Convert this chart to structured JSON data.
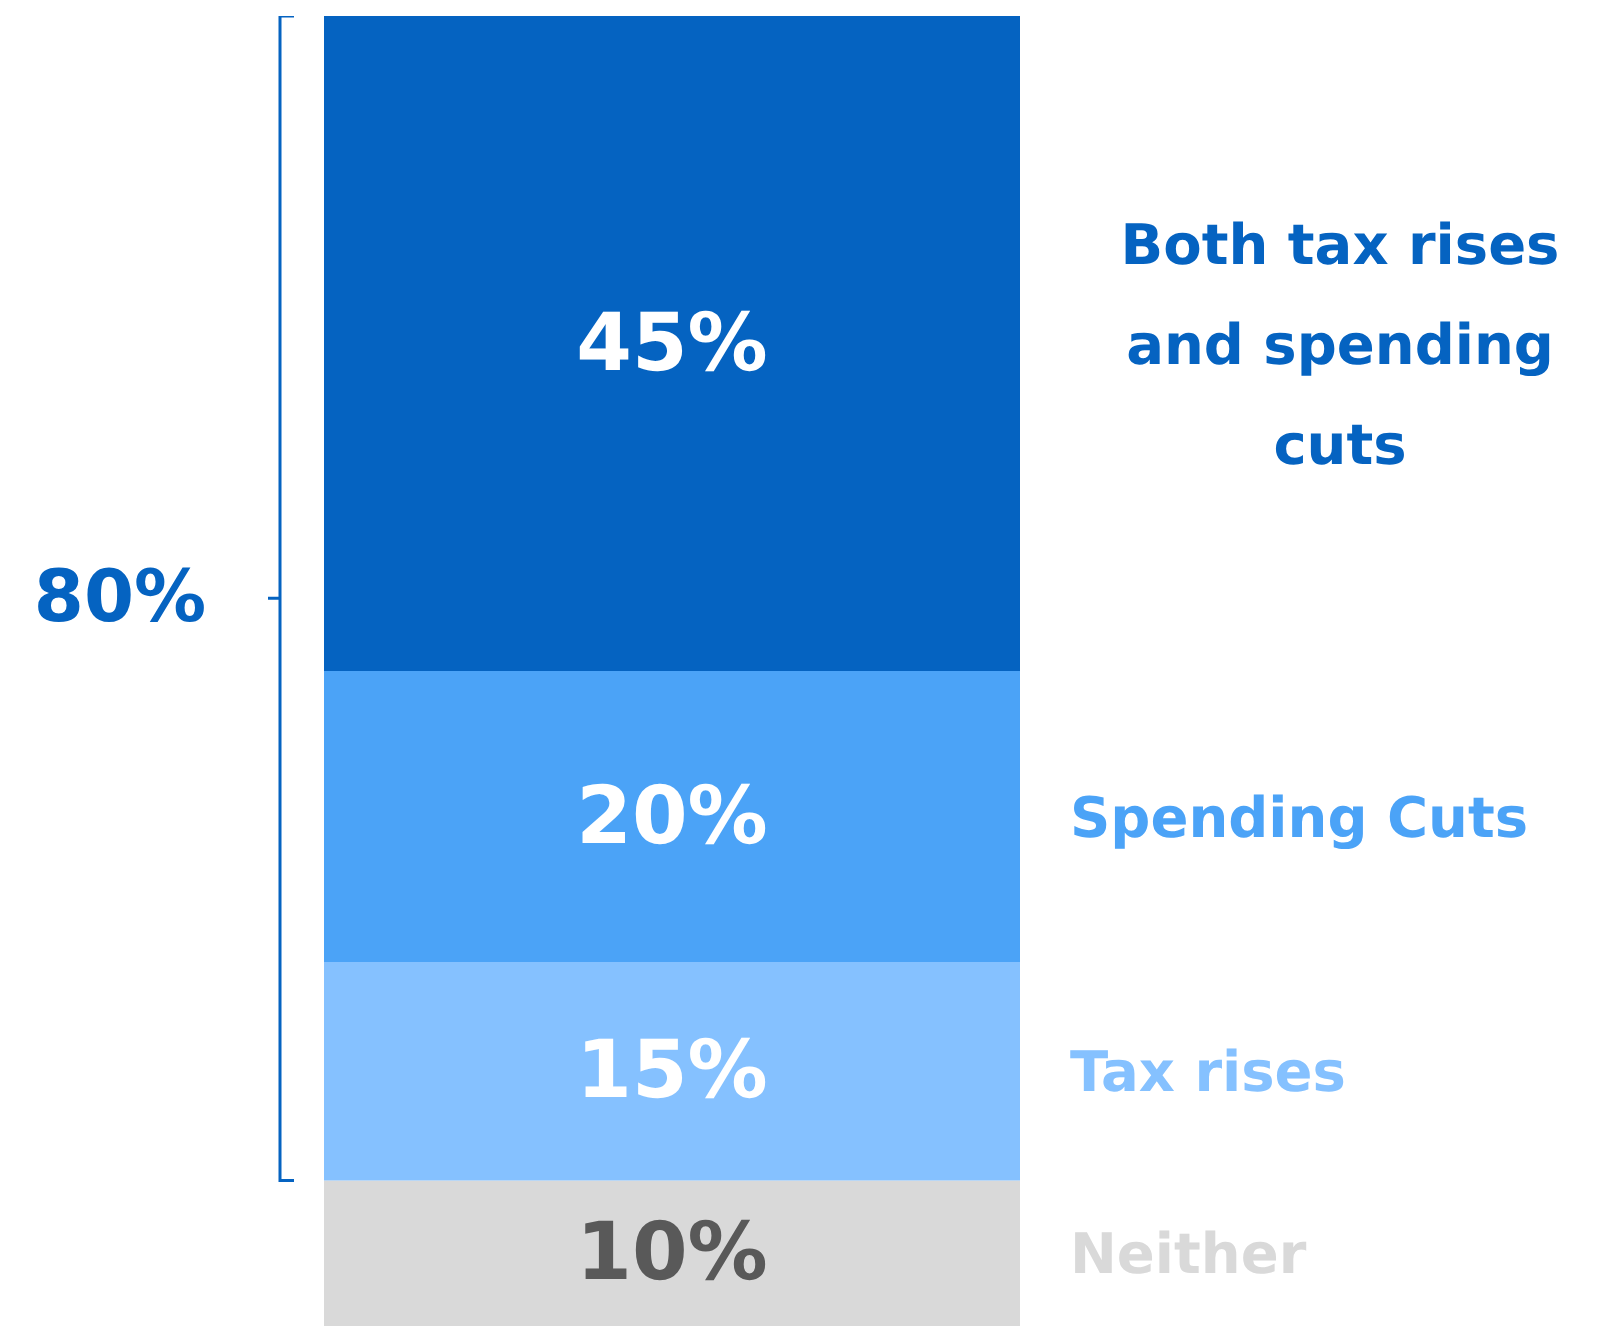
{
  "chart_data": {
    "type": "bar",
    "stacked": true,
    "categories": [
      null
    ],
    "series": [
      {
        "name": "Neither",
        "color": "#d9d9d9",
        "values": [
          10
        ],
        "value_labels": [
          "10%"
        ]
      },
      {
        "name": "Tax rises",
        "color": "#85c1ff",
        "values": [
          15
        ],
        "value_labels": [
          "15%"
        ]
      },
      {
        "name": "Spending Cuts",
        "color": "#4ba3f7",
        "values": [
          20
        ],
        "value_labels": [
          "20%"
        ]
      },
      {
        "name": "Both tax rises and spending cuts",
        "color": "#0563c1",
        "values": [
          45
        ],
        "value_labels": [
          "45%"
        ]
      }
    ],
    "annotations": [
      "80%"
    ]
  }
}
